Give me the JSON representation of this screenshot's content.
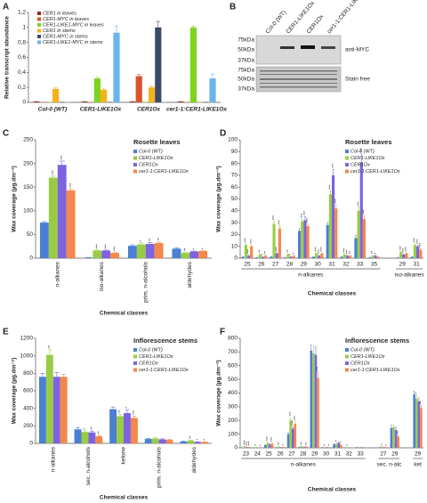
{
  "chart_data": [
    {
      "panel": "A",
      "type": "bar",
      "ylabel": "Relative transcript abundance",
      "legend": "top-left",
      "categories": [
        "Col-0 (WT)",
        "CER1-LIKE1Ox",
        "CER1Ox",
        "cer1-1:CER1-LIKE1Ox"
      ],
      "ylim": [
        0,
        1.2
      ],
      "yticks": [
        0,
        {
          "value": 0.2,
          "label": "0,2"
        },
        {
          "value": 0.4,
          "label": "0,4"
        },
        {
          "value": 0.6,
          "label": "0,6"
        },
        {
          "value": 0.8,
          "label": "0,8"
        },
        1,
        {
          "value": 1.2,
          "label": "1,2"
        }
      ],
      "series": [
        {
          "name": "CER1 in leaves",
          "color": "#8b2b1e",
          "values": [
            0.01,
            0.01,
            0.01,
            0.01
          ],
          "errors": [
            0,
            0,
            0,
            0
          ]
        },
        {
          "name": "CER1-MYC in leaves",
          "color": "#d9532c",
          "values": [
            0,
            0,
            0.35,
            0
          ],
          "errors": [
            0,
            0,
            0.02,
            0
          ]
        },
        {
          "name": "CER1-LIKE1-MYC in leaves",
          "color": "#7ed321",
          "values": [
            0,
            0.32,
            0,
            1.0
          ],
          "errors": [
            0,
            0.02,
            0,
            0.02
          ]
        },
        {
          "name": "CER1 in stems",
          "color": "#f5b21c",
          "values": [
            0.18,
            0.17,
            0.2,
            0
          ],
          "errors": [
            0.015,
            0.02,
            0.02,
            0
          ]
        },
        {
          "name": "CER1-MYC in stems",
          "color": "#3b4a6b",
          "values": [
            0,
            0,
            1.0,
            0
          ],
          "errors": [
            0,
            0,
            0.08,
            0
          ]
        },
        {
          "name": "CER1-LIKE1-MYC in stems",
          "color": "#6ab4f0",
          "values": [
            0,
            0.93,
            0,
            0.32
          ],
          "errors": [
            0,
            0.09,
            0,
            0.06
          ]
        }
      ]
    },
    {
      "panel": "C",
      "type": "bar",
      "title": "Rosette leaves",
      "ylabel": "Wax coverage (µg.dm⁻²)",
      "xlabel": "Chemical classes",
      "legend": "top-right",
      "rotate_labels": true,
      "categories": [
        "n-alkanes",
        "iso-alkanes",
        "prim. n-alcohols",
        "aldehydes"
      ],
      "ylim": [
        0,
        250
      ],
      "yticks": [
        0,
        50,
        100,
        150,
        200,
        250
      ],
      "series": [
        {
          "name": "Col-0 (WT)",
          "color": "#4a7fd4",
          "values": [
            75,
            1,
            26,
            20
          ],
          "errors": [
            2,
            0.5,
            2,
            2
          ],
          "significance": [
            null,
            null,
            null,
            null
          ]
        },
        {
          "name": "CER1-LIKE1Ox",
          "color": "#99cc44",
          "values": [
            170,
            16,
            29,
            11
          ],
          "errors": [
            3,
            1,
            3,
            1
          ],
          "significance": [
            "***",
            "***",
            "*",
            "**"
          ]
        },
        {
          "name": "CER1Ox",
          "color": "#7d63e0",
          "values": [
            197,
            16,
            30,
            14
          ],
          "errors": [
            8,
            1,
            3,
            1
          ],
          "significance": [
            "***",
            "***",
            "**",
            "*"
          ]
        },
        {
          "name": "cer1-1:CER1-LIKE1Ox",
          "color": "#f4874b",
          "values": [
            143,
            11,
            32,
            15
          ],
          "errors": [
            3,
            1,
            2,
            1
          ],
          "significance": [
            "***",
            "***",
            "**",
            "*"
          ]
        }
      ]
    },
    {
      "panel": "D",
      "type": "bar",
      "title": "Rosette leaves",
      "ylabel": "Wax coverage (µg.dm⁻²)",
      "xlabel": "Chemical classes",
      "legend": "top-right",
      "categories": [
        "25",
        "26",
        "27",
        "28",
        "29",
        "30",
        "31",
        "32",
        "33",
        "35",
        null,
        "29",
        "31"
      ],
      "groups": [
        {
          "name": "n-alkanes",
          "from": 0,
          "to": 9
        },
        {
          "name": "iso-alkanes",
          "from": 11,
          "to": 12
        }
      ],
      "ylim": [
        0,
        100
      ],
      "yticks": [
        0,
        10,
        20,
        30,
        40,
        50,
        60,
        70,
        80,
        90,
        100
      ],
      "series": [
        {
          "name": "Col-0 (WT)",
          "color": "#4a7fd4",
          "values": [
            1,
            0.5,
            1,
            0.5,
            23,
            1,
            28,
            1,
            17,
            0.5,
            null,
            0.5,
            1
          ],
          "errors": [
            0.3,
            0.2,
            0.3,
            0.2,
            2,
            0.3,
            2,
            0.3,
            2,
            0.2,
            null,
            0.2,
            0.3
          ],
          "significance": [
            null,
            null,
            null,
            null,
            null,
            null,
            null,
            null,
            null,
            null,
            null,
            null,
            null
          ]
        },
        {
          "name": "CER1-LIKE1Ox",
          "color": "#99cc44",
          "values": [
            11,
            3,
            29,
            3,
            31,
            4,
            54,
            3,
            40,
            2,
            null,
            5,
            11
          ],
          "errors": [
            1,
            0.5,
            2,
            0.5,
            2,
            0.5,
            3,
            0.5,
            3,
            0.4,
            null,
            0.5,
            1
          ],
          "significance": [
            "***",
            "**",
            "***",
            "**",
            "***",
            "***",
            "***",
            "***",
            "***",
            "**",
            null,
            "***",
            "***"
          ]
        },
        {
          "name": "CER1Ox",
          "color": "#7d63e0",
          "values": [
            2,
            1,
            4,
            1,
            32,
            2,
            70,
            2,
            81,
            2,
            null,
            3,
            10
          ],
          "errors": [
            0.5,
            0.3,
            0.5,
            0.3,
            3,
            0.4,
            5,
            0.4,
            7,
            0.4,
            null,
            0.5,
            1
          ],
          "significance": [
            "***",
            "*",
            "***",
            "*",
            "***",
            "***",
            "***",
            "***",
            "***",
            "*",
            null,
            "***",
            "***"
          ]
        },
        {
          "name": "cer1-1:CER1-LIKE1Ox",
          "color": "#f4874b",
          "values": [
            10,
            2,
            25,
            2,
            27,
            4,
            42,
            2,
            33,
            1,
            null,
            4,
            7
          ],
          "errors": [
            1,
            0.4,
            2,
            0.4,
            2,
            0.5,
            3,
            0.4,
            3,
            0.3,
            null,
            0.5,
            1
          ],
          "significance": [
            "***",
            "**",
            "***",
            "*",
            "***",
            "***",
            "***",
            "**",
            "***",
            null,
            null,
            "***",
            "***"
          ]
        }
      ]
    },
    {
      "panel": "E",
      "type": "bar",
      "title": "Inflorescence stems",
      "ylabel": "Wax coverage (µg.dm⁻²)",
      "xlabel": "Chemical classes",
      "legend": "top-right",
      "rotate_labels": true,
      "categories": [
        "n-alkanes",
        "sec. n-alcohols",
        "ketone",
        "prim. n-alcohols",
        "aldehydes"
      ],
      "ylim": [
        0,
        1200
      ],
      "yticks": [
        0,
        200,
        400,
        600,
        800,
        1000,
        1200
      ],
      "series": [
        {
          "name": "Col-0 (WT)",
          "color": "#4a7fd4",
          "values": [
            760,
            160,
            390,
            50,
            20
          ],
          "errors": [
            40,
            20,
            25,
            8,
            5
          ],
          "significance": [
            null,
            null,
            null,
            null,
            null
          ]
        },
        {
          "name": "CER1-LIKE1Ox",
          "color": "#99cc44",
          "values": [
            1010,
            130,
            310,
            55,
            30
          ],
          "errors": [
            60,
            15,
            20,
            8,
            5
          ],
          "significance": [
            "**",
            "*",
            "**",
            null,
            "**"
          ]
        },
        {
          "name": "CER1Ox",
          "color": "#7d63e0",
          "values": [
            760,
            125,
            345,
            45,
            15
          ],
          "errors": [
            50,
            15,
            40,
            6,
            4
          ],
          "significance": [
            null,
            "**",
            "*",
            null,
            "*"
          ]
        },
        {
          "name": "cer1-1:CER1-LIKE1Ox",
          "color": "#f4874b",
          "values": [
            760,
            80,
            290,
            40,
            15
          ],
          "errors": [
            30,
            10,
            20,
            5,
            4
          ],
          "significance": [
            null,
            "**",
            "***",
            null,
            "*"
          ]
        }
      ]
    },
    {
      "panel": "F",
      "type": "bar",
      "title": "Inflorescence stems",
      "ylabel": "Wax coverage (µg.dm⁻²)",
      "xlabel": "Chemical classes",
      "legend": "top-right",
      "categories": [
        "23",
        "24",
        "25",
        "26",
        "27",
        "28",
        "29",
        "30",
        "31",
        "32",
        "33",
        null,
        "27",
        "29",
        null,
        "29"
      ],
      "groups": [
        {
          "name": "n-alkanes",
          "from": 0,
          "to": 10
        },
        {
          "name": "sec. n-alc",
          "from": 12,
          "to": 13
        },
        {
          "name": "ket",
          "from": 15,
          "to": 15
        }
      ],
      "ylim": [
        0,
        800
      ],
      "yticks": [
        0,
        100,
        200,
        300,
        400,
        500,
        600,
        700,
        800
      ],
      "series": [
        {
          "name": "Col-0 (WT)",
          "color": "#4a7fd4",
          "values": [
            1,
            1,
            20,
            2,
            100,
            5,
            710,
            2,
            25,
            1,
            3,
            null,
            3,
            145,
            null,
            390
          ],
          "errors": [
            0.5,
            0.5,
            5,
            1,
            10,
            1,
            40,
            1,
            5,
            0.5,
            1,
            null,
            1,
            20,
            null,
            25
          ],
          "significance": [
            null,
            null,
            null,
            null,
            null,
            null,
            null,
            null,
            null,
            null,
            null,
            null,
            null,
            null,
            null,
            null
          ]
        },
        {
          "name": "CER1-LIKE1Ox",
          "color": "#99cc44",
          "values": [
            10,
            4,
            35,
            8,
            200,
            10,
            690,
            5,
            30,
            3,
            3,
            null,
            8,
            150,
            null,
            360
          ],
          "errors": [
            2,
            1,
            5,
            2,
            20,
            2,
            50,
            1,
            5,
            1,
            1,
            null,
            2,
            20,
            null,
            25
          ],
          "significance": [
            "***",
            "*",
            "***",
            "**",
            "***",
            "**",
            null,
            "*",
            "*",
            "*",
            null,
            null,
            "*",
            null,
            null,
            "*"
          ]
        },
        {
          "name": "CER1Ox",
          "color": "#7d63e0",
          "values": [
            3,
            1,
            25,
            3,
            140,
            5,
            680,
            3,
            35,
            1,
            3,
            null,
            3,
            130,
            null,
            340
          ],
          "errors": [
            1,
            0.5,
            5,
            1,
            15,
            1,
            60,
            1,
            5,
            0.5,
            1,
            null,
            1,
            20,
            null,
            25
          ],
          "significance": [
            "***",
            null,
            null,
            null,
            "***",
            null,
            null,
            null,
            null,
            null,
            null,
            null,
            null,
            null,
            null,
            null
          ]
        },
        {
          "name": "cer1-1:CER1-LIKE1Ox",
          "color": "#f4874b",
          "values": [
            5,
            2,
            30,
            5,
            175,
            8,
            510,
            3,
            20,
            1,
            3,
            null,
            3,
            80,
            null,
            290
          ],
          "errors": [
            1,
            1,
            5,
            1,
            15,
            2,
            40,
            1,
            4,
            0.5,
            1,
            null,
            1,
            10,
            null,
            20
          ],
          "significance": [
            "***",
            "*",
            "***",
            "*",
            "***",
            "**",
            "***",
            "*",
            "*",
            null,
            null,
            null,
            "*",
            "**",
            null,
            "**"
          ]
        }
      ]
    }
  ],
  "blot": {
    "panel": "B",
    "lanes": [
      "Col-0 (WT)",
      "CER1-LIKE1Ox",
      "CER1Ox",
      "cer1-1:CER1-LIKE1Ox"
    ],
    "markers_top": [
      "75kDa",
      "50kDa",
      "37kDa"
    ],
    "markers_bottom": [
      "75kDa",
      "50kDa",
      "37kDa"
    ],
    "labels": [
      "anti-MYC",
      "Stain free"
    ]
  }
}
